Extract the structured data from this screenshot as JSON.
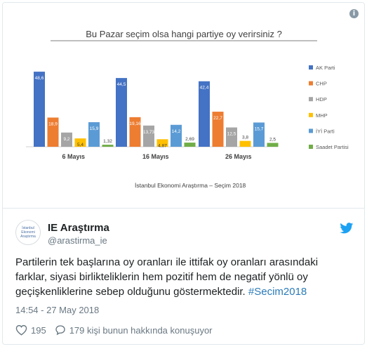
{
  "tweet": {
    "display_name": "IE Araştırma",
    "handle": "@arastirma_ie",
    "avatar_text": "İstanbul Ekonomi Araştırma",
    "text": "Partilerin tek başlarına oy oranları ile ittifak oy oranları arasındaki farklar, siyasi birlikteliklerin hem pozitif hem de negatif yönlü oy geçişkenliklerine sebep olduğunu göstermektedir.",
    "hashtag": "#Secim2018",
    "timestamp": "14:54 - 27 May 2018",
    "likes": "195",
    "replies_label": "179 kişi bunun hakkında konuşuyor"
  },
  "colors": {
    "like_icon": "#697882",
    "bird": "#1da1f2",
    "hashtag": "#2b7bb9"
  },
  "chart_data": {
    "type": "bar",
    "title": "Bu Pazar seçim olsa hangi partiye oy verirsiniz ?",
    "source": "İstanbul Ekonomi Araştırma – Seçim 2018",
    "categories": [
      "6 Mayıs",
      "16 Mayıs",
      "26 Mayıs"
    ],
    "ylim": [
      0,
      50
    ],
    "legend_position": "right",
    "series": [
      {
        "name": "AK Parti",
        "color": "#4472c4",
        "values": [
          48.6,
          44.5,
          42.4
        ],
        "labels": [
          "48,6",
          "44,5",
          "42,4"
        ]
      },
      {
        "name": "CHP",
        "color": "#ed7d31",
        "values": [
          18.9,
          19.16,
          22.7
        ],
        "labels": [
          "18,9",
          "19,16",
          "22,7"
        ]
      },
      {
        "name": "HDP",
        "color": "#a5a5a5",
        "values": [
          9.2,
          13.73,
          12.5
        ],
        "labels": [
          "9,2",
          "13,73",
          "12,5"
        ]
      },
      {
        "name": "MHP",
        "color": "#ffc000",
        "values": [
          5.4,
          4.87,
          3.8
        ],
        "labels": [
          "5,4",
          "4,87",
          "3,8"
        ]
      },
      {
        "name": "İYİ Parti",
        "color": "#5b9bd5",
        "values": [
          15.9,
          14.2,
          15.7
        ],
        "labels": [
          "15,9",
          "14,2",
          "15,7"
        ]
      },
      {
        "name": "Saadet Partisi",
        "color": "#70ad47",
        "values": [
          1.32,
          2.69,
          2.5
        ],
        "labels": [
          "1,32",
          "2,69",
          "2,5"
        ]
      }
    ]
  }
}
